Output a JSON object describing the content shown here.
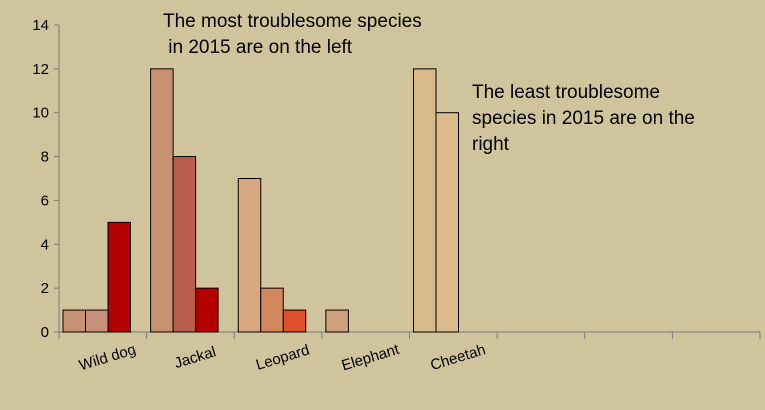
{
  "chart_data": {
    "type": "bar",
    "categories": [
      "Wild dog",
      "Jackal",
      "Leopard",
      "Elephant",
      "Cheetah",
      "",
      "",
      ""
    ],
    "series": [
      {
        "values": [
          1,
          12,
          7,
          1,
          12,
          0,
          0,
          0
        ]
      },
      {
        "values": [
          1,
          8,
          2,
          0,
          10,
          0,
          0,
          0
        ]
      },
      {
        "values": [
          5,
          2,
          1,
          0,
          0,
          0,
          0,
          0
        ]
      }
    ],
    "bar_colors": [
      [
        "#c79272",
        "#c79272",
        "#d9a77f",
        "#cfa07c",
        "#d8b98a"
      ],
      [
        "#c8907a",
        "#bb5d4d",
        "#d3875f",
        "#c79272",
        "#dcbc8c"
      ],
      [
        "#b50000",
        "#b50000",
        "#e0502c",
        "#c79272",
        "#dcbc8c"
      ]
    ],
    "ylim": [
      0,
      14
    ],
    "yticks": [
      "0",
      "2",
      "4",
      "6",
      "8",
      "10",
      "12",
      "14"
    ],
    "background": "#cfc49b",
    "grid": false,
    "annotations": [
      {
        "lines": [
          "The most troublesome species",
          " in 2015 are on the left"
        ]
      },
      {
        "lines": [
          "The least troublesome",
          "species in 2015 are on the",
          "right"
        ]
      }
    ]
  }
}
